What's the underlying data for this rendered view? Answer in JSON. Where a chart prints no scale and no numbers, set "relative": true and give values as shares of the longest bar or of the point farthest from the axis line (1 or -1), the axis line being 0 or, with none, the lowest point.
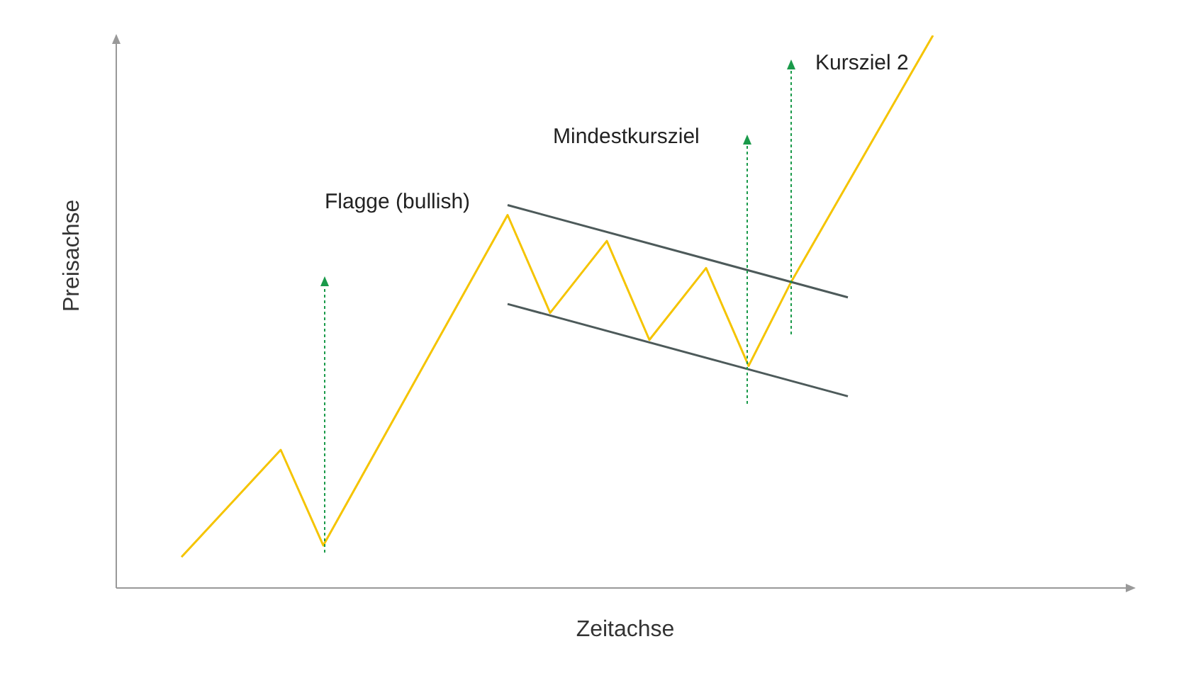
{
  "chart_data": {
    "type": "line",
    "relative": true,
    "xlabel": "Zeitachse",
    "ylabel": "Preisachse",
    "marker": "none",
    "annotations": [
      "Flagge (bullish)",
      "Mindestkursziel",
      "Kursziel 2"
    ],
    "categories": [
      null,
      null,
      null,
      null,
      null,
      null,
      null,
      null,
      null,
      null,
      null,
      null,
      null,
      null,
      null,
      null,
      null,
      null,
      null,
      null,
      null,
      null,
      null,
      null,
      null,
      null,
      null,
      null,
      null,
      null,
      null,
      null,
      null,
      null,
      null,
      null,
      null,
      null,
      null,
      null,
      null,
      null,
      null,
      null,
      null,
      null,
      null,
      null,
      null,
      null,
      null,
      null,
      null,
      null
    ],
    "series": [
      {
        "color": "#f5c400",
        "values": [
          0.056,
          null,
          null,
          null,
          null,
          null,
          null,
          0.25,
          null,
          null,
          0.077,
          null,
          null,
          null,
          null,
          null,
          null,
          null,
          null,
          null,
          null,
          null,
          null,
          0.675,
          null,
          null,
          0.498,
          null,
          null,
          null,
          0.628,
          null,
          null,
          0.449,
          null,
          null,
          null,
          0.579,
          null,
          null,
          0.402,
          null,
          null,
          0.554,
          null,
          null,
          null,
          null,
          null,
          null,
          null,
          null,
          null,
          1
        ]
      },
      {
        "type": "line",
        "color": "#4d5a5a",
        "values": [
          null,
          null,
          null,
          null,
          null,
          null,
          null,
          null,
          null,
          null,
          null,
          null,
          null,
          null,
          null,
          null,
          null,
          null,
          null,
          null,
          null,
          null,
          null,
          0.693,
          null,
          null,
          null,
          null,
          null,
          null,
          null,
          null,
          null,
          null,
          null,
          null,
          null,
          null,
          null,
          null,
          null,
          null,
          null,
          null,
          null,
          null,
          null,
          0.526,
          null,
          null,
          null,
          null,
          null,
          null
        ]
      },
      {
        "type": "line",
        "color": "#4d5a5a",
        "values": [
          null,
          null,
          null,
          null,
          null,
          null,
          null,
          null,
          null,
          null,
          null,
          null,
          null,
          null,
          null,
          null,
          null,
          null,
          null,
          null,
          null,
          null,
          null,
          0.514,
          null,
          null,
          null,
          null,
          null,
          null,
          null,
          null,
          null,
          null,
          null,
          null,
          null,
          null,
          null,
          null,
          null,
          null,
          null,
          null,
          null,
          null,
          null,
          0.347,
          null,
          null,
          null,
          null,
          null,
          null
        ]
      }
    ]
  }
}
